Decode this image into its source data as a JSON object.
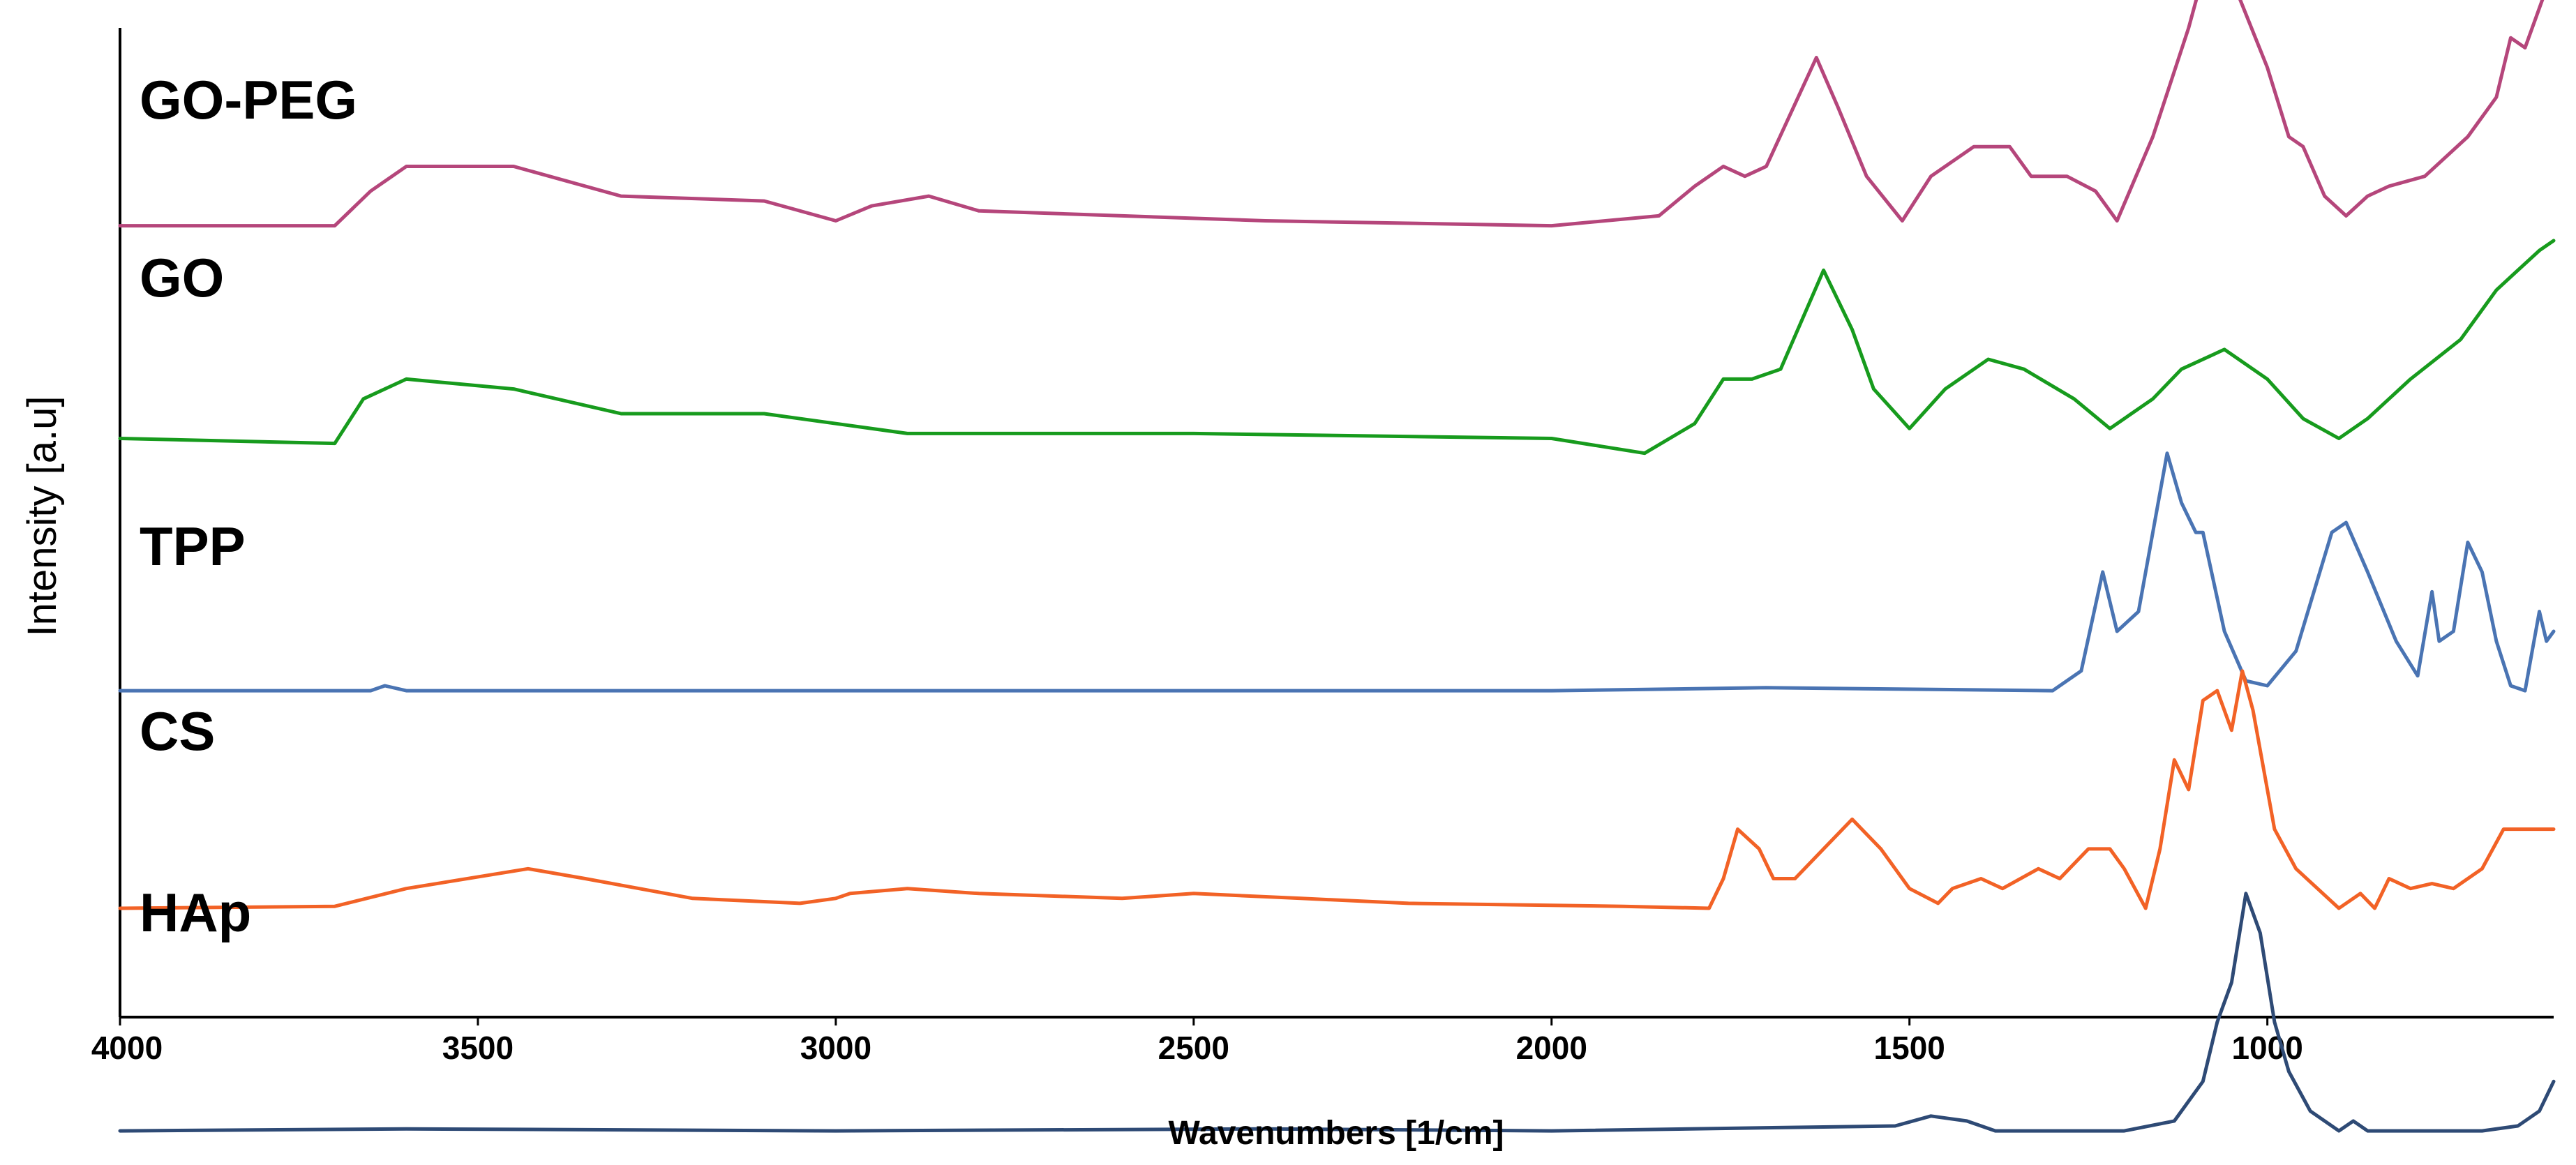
{
  "chart_data": {
    "type": "line",
    "title": "",
    "xlabel": "Wavenumbers [1/cm]",
    "ylabel": "Intensity [a.u]",
    "xlim": [
      4000,
      600
    ],
    "x_reversed": true,
    "x_ticks": [
      4000,
      3500,
      3000,
      2500,
      2000,
      1500,
      1000
    ],
    "x_tick_labels": [
      "4000",
      "3500",
      "3000",
      "2500",
      "2000",
      "1500",
      "1000"
    ],
    "y_ticks": "none",
    "grid": false,
    "legend": "none",
    "series": [
      {
        "name": "GO-PEG",
        "color": "#b5467b",
        "offset": 0.8,
        "points": [
          [
            4000,
            0.0
          ],
          [
            3700,
            0.0
          ],
          [
            3650,
            0.035
          ],
          [
            3600,
            0.06
          ],
          [
            3450,
            0.06
          ],
          [
            3300,
            0.03
          ],
          [
            3100,
            0.025
          ],
          [
            3000,
            0.005
          ],
          [
            2950,
            0.02
          ],
          [
            2870,
            0.03
          ],
          [
            2800,
            0.015
          ],
          [
            2600,
            0.01
          ],
          [
            2400,
            0.005
          ],
          [
            2000,
            0.0
          ],
          [
            1850,
            0.01
          ],
          [
            1800,
            0.04
          ],
          [
            1760,
            0.06
          ],
          [
            1730,
            0.05
          ],
          [
            1700,
            0.06
          ],
          [
            1630,
            0.17
          ],
          [
            1600,
            0.12
          ],
          [
            1560,
            0.05
          ],
          [
            1510,
            0.005
          ],
          [
            1470,
            0.05
          ],
          [
            1410,
            0.08
          ],
          [
            1360,
            0.08
          ],
          [
            1330,
            0.05
          ],
          [
            1280,
            0.05
          ],
          [
            1240,
            0.035
          ],
          [
            1210,
            0.005
          ],
          [
            1160,
            0.09
          ],
          [
            1110,
            0.2
          ],
          [
            1080,
            0.28
          ],
          [
            1050,
            0.25
          ],
          [
            1000,
            0.16
          ],
          [
            970,
            0.09
          ],
          [
            950,
            0.08
          ],
          [
            920,
            0.03
          ],
          [
            890,
            0.01
          ],
          [
            860,
            0.03
          ],
          [
            830,
            0.04
          ],
          [
            780,
            0.05
          ],
          [
            720,
            0.09
          ],
          [
            680,
            0.13
          ],
          [
            660,
            0.19
          ],
          [
            640,
            0.18
          ],
          [
            620,
            0.22
          ],
          [
            600,
            0.26
          ]
        ]
      },
      {
        "name": "GO",
        "color": "#179b1d",
        "offset": 0.585,
        "points": [
          [
            4000,
            0.0
          ],
          [
            3700,
            -0.005
          ],
          [
            3660,
            0.04
          ],
          [
            3600,
            0.06
          ],
          [
            3450,
            0.05
          ],
          [
            3300,
            0.025
          ],
          [
            3100,
            0.025
          ],
          [
            3000,
            0.015
          ],
          [
            2900,
            0.005
          ],
          [
            2500,
            0.005
          ],
          [
            2000,
            0.0
          ],
          [
            1870,
            -0.015
          ],
          [
            1800,
            0.015
          ],
          [
            1760,
            0.06
          ],
          [
            1720,
            0.06
          ],
          [
            1680,
            0.07
          ],
          [
            1620,
            0.17
          ],
          [
            1580,
            0.11
          ],
          [
            1550,
            0.05
          ],
          [
            1500,
            0.01
          ],
          [
            1450,
            0.05
          ],
          [
            1390,
            0.08
          ],
          [
            1340,
            0.07
          ],
          [
            1270,
            0.04
          ],
          [
            1220,
            0.01
          ],
          [
            1160,
            0.04
          ],
          [
            1120,
            0.07
          ],
          [
            1060,
            0.09
          ],
          [
            1000,
            0.06
          ],
          [
            950,
            0.02
          ],
          [
            900,
            0.0
          ],
          [
            860,
            0.02
          ],
          [
            800,
            0.06
          ],
          [
            730,
            0.1
          ],
          [
            680,
            0.15
          ],
          [
            650,
            0.17
          ],
          [
            620,
            0.19
          ],
          [
            600,
            0.2
          ]
        ]
      },
      {
        "name": "TPP",
        "color": "#4a74b3",
        "offset": 0.33,
        "points": [
          [
            4000,
            0.0
          ],
          [
            3650,
            0.0
          ],
          [
            3630,
            0.005
          ],
          [
            3600,
            0.0
          ],
          [
            2000,
            0.0
          ],
          [
            1700,
            0.003
          ],
          [
            1300,
            0.0
          ],
          [
            1260,
            0.02
          ],
          [
            1230,
            0.12
          ],
          [
            1210,
            0.06
          ],
          [
            1180,
            0.08
          ],
          [
            1140,
            0.24
          ],
          [
            1120,
            0.19
          ],
          [
            1100,
            0.16
          ],
          [
            1090,
            0.16
          ],
          [
            1060,
            0.06
          ],
          [
            1030,
            0.01
          ],
          [
            1000,
            0.005
          ],
          [
            960,
            0.04
          ],
          [
            910,
            0.16
          ],
          [
            890,
            0.17
          ],
          [
            860,
            0.12
          ],
          [
            820,
            0.05
          ],
          [
            790,
            0.015
          ],
          [
            770,
            0.1
          ],
          [
            760,
            0.05
          ],
          [
            740,
            0.06
          ],
          [
            720,
            0.15
          ],
          [
            700,
            0.12
          ],
          [
            680,
            0.05
          ],
          [
            660,
            0.005
          ],
          [
            640,
            0.0
          ],
          [
            630,
            0.04
          ],
          [
            620,
            0.08
          ],
          [
            610,
            0.05
          ],
          [
            600,
            0.06
          ]
        ]
      },
      {
        "name": "CS",
        "color": "#f26226",
        "offset": 0.11,
        "points": [
          [
            4000,
            0.0
          ],
          [
            3700,
            0.002
          ],
          [
            3600,
            0.02
          ],
          [
            3430,
            0.04
          ],
          [
            3350,
            0.03
          ],
          [
            3200,
            0.01
          ],
          [
            3050,
            0.005
          ],
          [
            3000,
            0.01
          ],
          [
            2980,
            0.015
          ],
          [
            2900,
            0.02
          ],
          [
            2800,
            0.015
          ],
          [
            2600,
            0.01
          ],
          [
            2500,
            0.015
          ],
          [
            2350,
            0.01
          ],
          [
            2200,
            0.005
          ],
          [
            1900,
            0.002
          ],
          [
            1780,
            0.0
          ],
          [
            1760,
            0.03
          ],
          [
            1740,
            0.08
          ],
          [
            1710,
            0.06
          ],
          [
            1690,
            0.03
          ],
          [
            1660,
            0.03
          ],
          [
            1620,
            0.06
          ],
          [
            1580,
            0.09
          ],
          [
            1540,
            0.06
          ],
          [
            1500,
            0.02
          ],
          [
            1460,
            0.005
          ],
          [
            1440,
            0.02
          ],
          [
            1400,
            0.03
          ],
          [
            1370,
            0.02
          ],
          [
            1320,
            0.04
          ],
          [
            1290,
            0.03
          ],
          [
            1250,
            0.06
          ],
          [
            1220,
            0.06
          ],
          [
            1200,
            0.04
          ],
          [
            1170,
            0.0
          ],
          [
            1150,
            0.06
          ],
          [
            1130,
            0.15
          ],
          [
            1110,
            0.12
          ],
          [
            1090,
            0.21
          ],
          [
            1070,
            0.22
          ],
          [
            1050,
            0.18
          ],
          [
            1035,
            0.24
          ],
          [
            1020,
            0.2
          ],
          [
            990,
            0.08
          ],
          [
            960,
            0.04
          ],
          [
            930,
            0.02
          ],
          [
            900,
            0.0
          ],
          [
            870,
            0.015
          ],
          [
            850,
            0.0
          ],
          [
            830,
            0.03
          ],
          [
            800,
            0.02
          ],
          [
            770,
            0.025
          ],
          [
            740,
            0.02
          ],
          [
            700,
            0.04
          ],
          [
            670,
            0.08
          ],
          [
            650,
            0.08
          ],
          [
            620,
            0.08
          ],
          [
            600,
            0.08
          ]
        ]
      },
      {
        "name": "HAp",
        "color": "#2e4a75",
        "offset": -0.115,
        "points": [
          [
            4000,
            0.0
          ],
          [
            3600,
            0.002
          ],
          [
            3000,
            0.0
          ],
          [
            2400,
            0.002
          ],
          [
            2000,
            0.0
          ],
          [
            1520,
            0.005
          ],
          [
            1470,
            0.015
          ],
          [
            1420,
            0.01
          ],
          [
            1380,
            0.0
          ],
          [
            1200,
            0.0
          ],
          [
            1130,
            0.01
          ],
          [
            1090,
            0.05
          ],
          [
            1070,
            0.11
          ],
          [
            1050,
            0.15
          ],
          [
            1030,
            0.24
          ],
          [
            1010,
            0.2
          ],
          [
            990,
            0.11
          ],
          [
            970,
            0.06
          ],
          [
            940,
            0.02
          ],
          [
            900,
            0.0
          ],
          [
            880,
            0.01
          ],
          [
            860,
            0.0
          ],
          [
            800,
            0.0
          ],
          [
            700,
            0.0
          ],
          [
            650,
            0.005
          ],
          [
            620,
            0.02
          ],
          [
            600,
            0.05
          ]
        ]
      }
    ]
  }
}
